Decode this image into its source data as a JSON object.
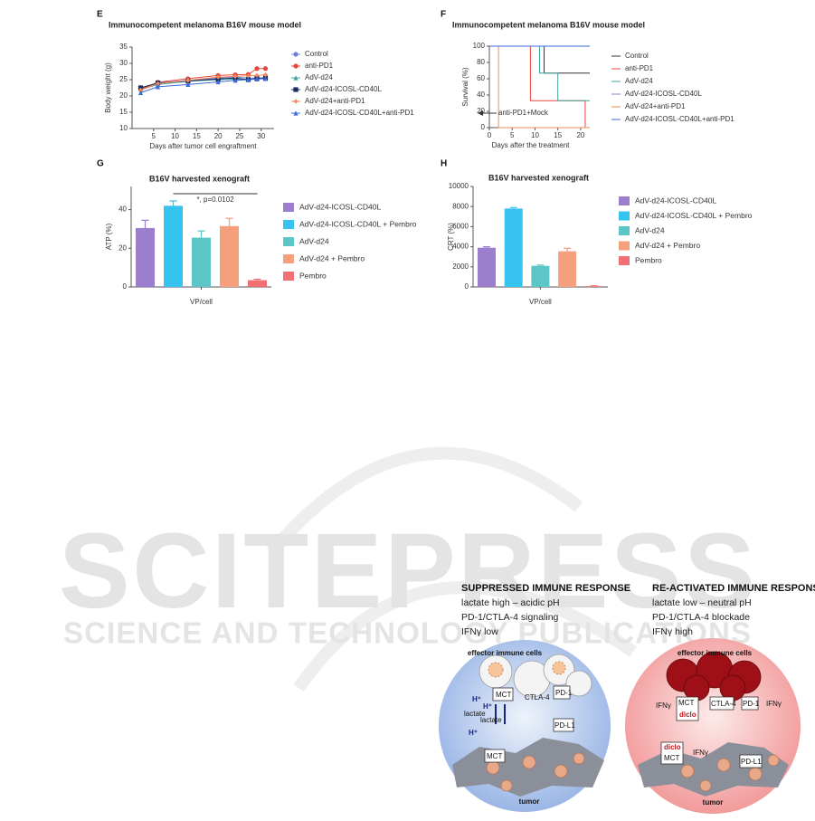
{
  "chart_data": [
    {
      "type": "line",
      "panel": "E",
      "title": "Immunocompetent melanoma B16V mouse model",
      "x_label": "Days after tumor cell engraftment",
      "y_label": "Body weight (g)",
      "xlim": [
        0,
        33
      ],
      "xticks": [
        5,
        10,
        15,
        20,
        25,
        30
      ],
      "ylim": [
        10,
        35
      ],
      "yticks": [
        10,
        15,
        20,
        25,
        30,
        35
      ],
      "legend": "right",
      "step": false,
      "markers": true,
      "x": [
        2,
        6,
        13,
        20,
        24,
        27,
        29,
        31
      ],
      "series": [
        {
          "name": "Control",
          "color": "#7080d8",
          "marker": "circle",
          "values": [
            22.3,
            24,
            24.8,
            25.5,
            25.8,
            25.5,
            25.5,
            25.6
          ]
        },
        {
          "name": "anti-PD1",
          "color": "#e8473d",
          "marker": "circle",
          "values": [
            22,
            24.2,
            25.3,
            26.3,
            26.5,
            26.6,
            28.4,
            28.4
          ]
        },
        {
          "name": "AdV-d24",
          "color": "#3fa39b",
          "marker": "triangle",
          "values": [
            22,
            23.5,
            24.5,
            25,
            25.2,
            25,
            25.2,
            25.4
          ]
        },
        {
          "name": "AdV-d24-ICOSL-CD40L",
          "color": "#1a2a5e",
          "marker": "square",
          "values": [
            22.5,
            24,
            24.6,
            25.2,
            25.5,
            25,
            25.4,
            25.5
          ]
        },
        {
          "name": "AdV-d24+anti-PD1",
          "color": "#f08a5d",
          "marker": "diamond",
          "values": [
            21.8,
            23.8,
            24.8,
            25.8,
            26,
            26.2,
            26.3,
            26.5
          ]
        },
        {
          "name": "AdV-d24-ICOSL-CD40L+anti-PD1",
          "color": "#3d6bd9",
          "marker": "triangle",
          "values": [
            21,
            22.8,
            23.5,
            24.3,
            24.8,
            25,
            25.2,
            25.3
          ]
        }
      ]
    },
    {
      "type": "line",
      "panel": "F",
      "title": "Immunocompetent melanoma B16V mouse model",
      "x_label": "Days after the treatment",
      "y_label": "Survival (%)",
      "xlim": [
        0,
        22
      ],
      "xticks": [
        0,
        5,
        10,
        15,
        20
      ],
      "ylim": [
        0,
        100
      ],
      "yticks": [
        0,
        20,
        40,
        60,
        80,
        100
      ],
      "legend": "right",
      "step": true,
      "markers": false,
      "annotation": "anti-PD1+Mock",
      "x": [
        0,
        2,
        9,
        11,
        12,
        15,
        21
      ],
      "series": [
        {
          "name": "Control",
          "color": "#333333",
          "values": [
            100,
            100,
            100,
            100,
            67,
            67,
            67
          ]
        },
        {
          "name": "anti-PD1",
          "color": "#e8473d",
          "values": [
            100,
            100,
            33,
            33,
            33,
            33,
            0
          ]
        },
        {
          "name": "AdV-d24",
          "color": "#3fa39b",
          "values": [
            100,
            100,
            100,
            67,
            67,
            33,
            33
          ]
        },
        {
          "name": "AdV-d24-ICOSL-CD40L",
          "color": "#8a7bc8",
          "values": [
            100,
            100,
            100,
            100,
            100,
            100,
            100
          ]
        },
        {
          "name": "AdV-d24+anti-PD1",
          "color": "#f08a5d",
          "values": [
            100,
            0,
            0,
            0,
            0,
            0,
            0
          ]
        },
        {
          "name": "AdV-d24-ICOSL-CD40L+anti-PD1",
          "color": "#3d6bd9",
          "values": [
            100,
            100,
            100,
            100,
            100,
            100,
            100
          ]
        }
      ]
    },
    {
      "type": "bar",
      "panel": "G",
      "title": "B16V harvested xenograft",
      "y_label": "ATP (%)",
      "categories": [
        "VP/cell"
      ],
      "ylim": [
        0,
        52
      ],
      "yticks": [
        0,
        20,
        40
      ],
      "legend": "right",
      "annotation": "*, p=0.0102",
      "series": [
        {
          "name": "AdV-d24-ICOSL-CD40L",
          "color": "#9b7fcc",
          "values": [
            30.5
          ],
          "errors": [
            4
          ]
        },
        {
          "name": "AdV-d24-ICOSL-CD40L + Pembro",
          "color": "#37c3f0",
          "values": [
            42
          ],
          "errors": [
            2.5
          ]
        },
        {
          "name": "AdV-d24",
          "color": "#5cc6c6",
          "values": [
            25.5
          ],
          "errors": [
            3.5
          ]
        },
        {
          "name": "AdV-d24 + Pembro",
          "color": "#f59f7d",
          "values": [
            31.5
          ],
          "errors": [
            4
          ]
        },
        {
          "name": "Pembro",
          "color": "#f07074",
          "values": [
            3.5
          ],
          "errors": [
            0.5
          ]
        }
      ]
    },
    {
      "type": "bar",
      "panel": "H",
      "title": "B16V harvested xenograft",
      "y_label": "CRT (%)",
      "categories": [
        "VP/cell"
      ],
      "ylim": [
        0,
        10000
      ],
      "yticks": [
        0,
        2000,
        4000,
        6000,
        8000,
        10000
      ],
      "legend": "right",
      "series": [
        {
          "name": "AdV-d24-ICOSL-CD40L",
          "color": "#9b7fcc",
          "values": [
            3900
          ],
          "errors": [
            100
          ]
        },
        {
          "name": "AdV-d24-ICOSL-CD40L + Pembro",
          "color": "#37c3f0",
          "values": [
            7800
          ],
          "errors": [
            100
          ]
        },
        {
          "name": "AdV-d24",
          "color": "#5cc6c6",
          "values": [
            2100
          ],
          "errors": [
            80
          ]
        },
        {
          "name": "AdV-d24 + Pembro",
          "color": "#f59f7d",
          "values": [
            3550
          ],
          "errors": [
            300
          ]
        },
        {
          "name": "Pembro",
          "color": "#f07074",
          "values": [
            80
          ],
          "errors": [
            40
          ]
        }
      ]
    }
  ],
  "watermark": {
    "title": "SCITEPRESS",
    "subtitle": "SCIENCE AND TECHNOLOGY PUBLICATIONS"
  },
  "diagram": {
    "left": {
      "title": "SUPPRESSED IMMUNE RESPONSE",
      "lines": [
        "lactate high – acidic pH",
        "PD-1/CTLA-4  signaling",
        "IFNγ low"
      ],
      "labels": [
        "effector immune cells",
        "MCT",
        "CTLA-4",
        "PD-1",
        "PD-L1",
        "H⁺",
        "lactate",
        "H⁺",
        "lactate",
        "MCT",
        "H⁺",
        "tumor"
      ]
    },
    "right": {
      "title": "RE-ACTIVATED IMMUNE RESPONSE",
      "lines": [
        "lactate low – neutral pH",
        "PD-1/CTLA-4  blockade",
        "IFNγ high"
      ],
      "labels": [
        "effector immune cells",
        "MCT",
        "diclo",
        "CTLA-4",
        "PD-1",
        "IFNγ",
        "IFNγ",
        "diclo",
        "MCT",
        "IFNγ",
        "PD-L1",
        "tumor"
      ]
    }
  }
}
